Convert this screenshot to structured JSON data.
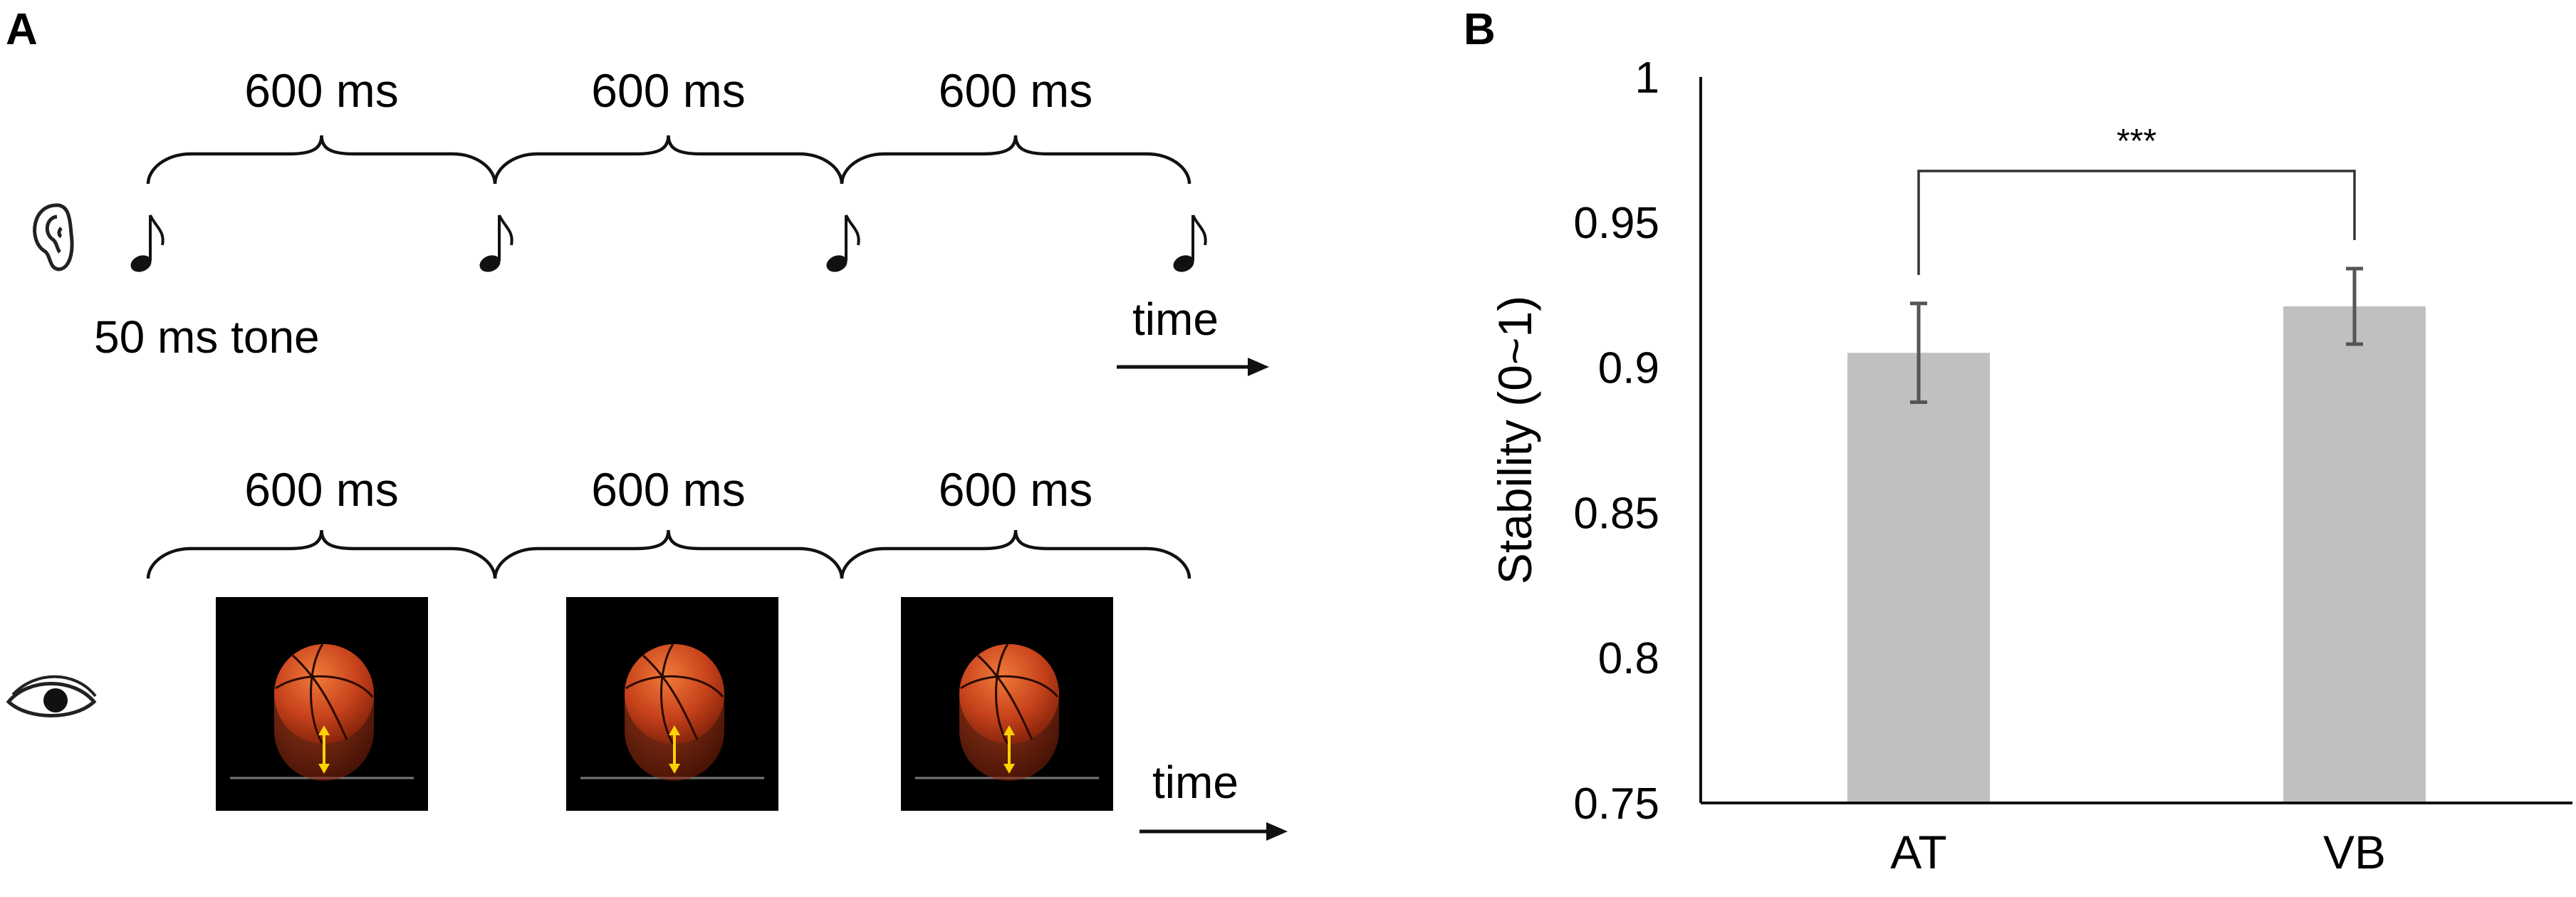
{
  "panel_a": {
    "letter": "A",
    "auditory": {
      "interval_labels": [
        "600 ms",
        "600 ms",
        "600 ms"
      ],
      "tone_label": "50 ms tone",
      "time_label": "time",
      "icon": "ear-icon",
      "note_icon": "music-note-icon"
    },
    "visual": {
      "interval_labels": [
        "600 ms",
        "600 ms",
        "600 ms"
      ],
      "time_label": "time",
      "icon": "eye-icon",
      "stimulus_icon": "bouncing-basketball-icon"
    }
  },
  "panel_b": {
    "letter": "B"
  },
  "chart_data": {
    "type": "bar",
    "categories": [
      "AT",
      "VB"
    ],
    "values": [
      0.905,
      0.921
    ],
    "errors": [
      0.017,
      0.013
    ],
    "title": "",
    "xlabel": "",
    "ylabel": "Stability (0~1)",
    "ylim": [
      0.75,
      1
    ],
    "yticks": [
      "0.75",
      "0.8",
      "0.85",
      "0.9",
      "0.95",
      "1"
    ],
    "grid": false,
    "bar_color": "#c0c0c0",
    "error_color": "#555555",
    "significance": {
      "pair": [
        "AT",
        "VB"
      ],
      "label": "***"
    }
  }
}
